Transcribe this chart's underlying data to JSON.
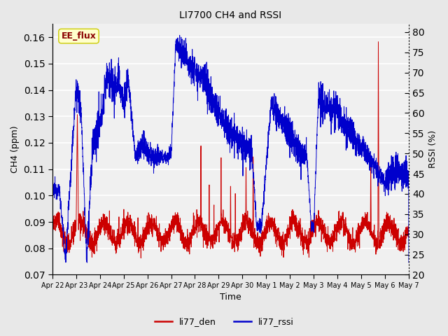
{
  "title": "LI7700 CH4 and RSSI",
  "xlabel": "Time",
  "ylabel_left": "CH4 (ppm)",
  "ylabel_right": "RSSI (%)",
  "ylim_left": [
    0.07,
    0.165
  ],
  "ylim_right": [
    20,
    82
  ],
  "yticks_left": [
    0.07,
    0.08,
    0.09,
    0.1,
    0.11,
    0.12,
    0.13,
    0.14,
    0.15,
    0.16
  ],
  "yticks_right": [
    20,
    25,
    30,
    35,
    40,
    45,
    50,
    55,
    60,
    65,
    70,
    75,
    80
  ],
  "annotation_text": "EE_flux",
  "annotation_color": "#8B0000",
  "annotation_bg": "#FFFFCC",
  "annotation_edge": "#CCCC00",
  "line_ch4_color": "#CC0000",
  "line_rssi_color": "#0000CC",
  "legend_ch4": "li77_den",
  "legend_rssi": "li77_rssi",
  "background_color": "#E8E8E8",
  "plot_bg_color": "#F0F0F0",
  "grid_color": "white",
  "date_labels": [
    "Apr 22",
    "Apr 23",
    "Apr 24",
    "Apr 25",
    "Apr 26",
    "Apr 27",
    "Apr 28",
    "Apr 29",
    "Apr 30",
    "May 1",
    "May 2",
    "May 3",
    "May 4",
    "May 5",
    "May 6",
    "May 7"
  ]
}
